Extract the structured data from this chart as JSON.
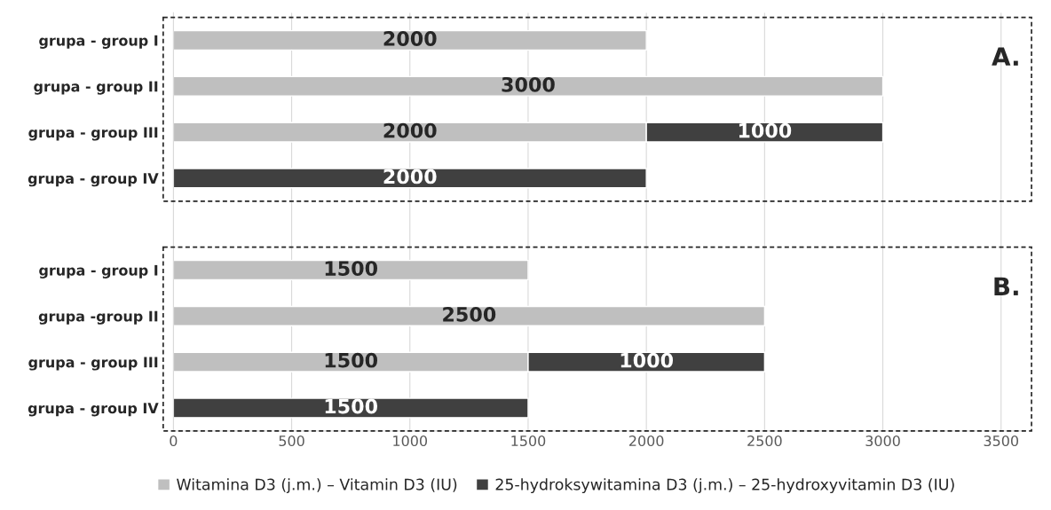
{
  "chart_data": {
    "type": "bar",
    "orientation": "horizontal",
    "stacked": true,
    "categories": [
      "grupa - group I",
      "grupa - group II",
      "grupa - group III",
      "grupa - group IV",
      null,
      "grupa - group I",
      "grupa -group II",
      "grupa - group III",
      "grupa - group IV"
    ],
    "series": [
      {
        "name": "Witamina D3 (j.m.) – Vitamin D3 (IU)",
        "color": "#bfbfbf",
        "values": [
          2000,
          3000,
          2000,
          null,
          null,
          1500,
          2500,
          1500,
          null
        ]
      },
      {
        "name": "25-hydroksywitamina D3 (j.m.) – 25-hydroxyvitamin D3 (IU)",
        "color": "#404040",
        "values": [
          null,
          null,
          1000,
          2000,
          null,
          null,
          null,
          1000,
          1500
        ]
      }
    ],
    "xlim": [
      0,
      3600
    ],
    "xticks": [
      0,
      500,
      1000,
      1500,
      2000,
      2500,
      3000,
      3500
    ],
    "grid": "x",
    "legend": "bottom",
    "data_labels": true,
    "annotations": [
      "A.",
      "B."
    ]
  }
}
